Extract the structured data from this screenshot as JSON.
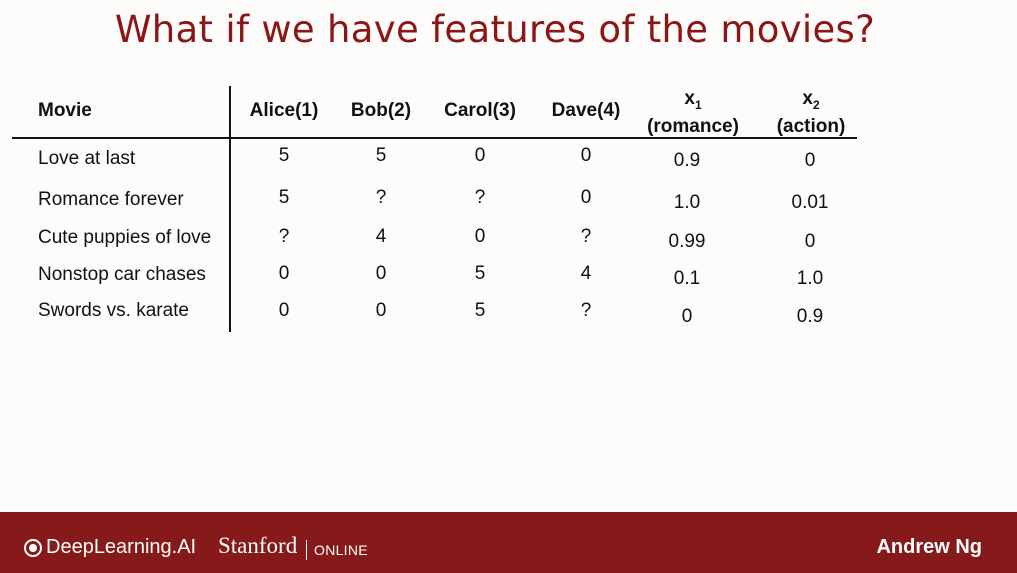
{
  "title": "What if we have features of the movies?",
  "table": {
    "headers": {
      "movie": "Movie",
      "alice": "Alice(1)",
      "bob": "Bob(2)",
      "carol": "Carol(3)",
      "dave": "Dave(4)",
      "x1_var": "x",
      "x1_sub": "1",
      "x1_label": "(romance)",
      "x2_var": "x",
      "x2_sub": "2",
      "x2_label": "(action)"
    },
    "rows": [
      {
        "movie": "Love at last",
        "alice": "5",
        "bob": "5",
        "carol": "0",
        "dave": "0",
        "x1": "0.9",
        "x2": "0"
      },
      {
        "movie": "Romance forever",
        "alice": "5",
        "bob": "?",
        "carol": "?",
        "dave": "0",
        "x1": "1.0",
        "x2": "0.01"
      },
      {
        "movie": "Cute puppies of love",
        "alice": "?",
        "bob": "4",
        "carol": "0",
        "dave": "?",
        "x1": "0.99",
        "x2": "0"
      },
      {
        "movie": "Nonstop car chases",
        "alice": "0",
        "bob": "0",
        "carol": "5",
        "dave": "4",
        "x1": "0.1",
        "x2": "1.0"
      },
      {
        "movie": "Swords vs. karate",
        "alice": "0",
        "bob": "0",
        "carol": "5",
        "dave": "?",
        "x1": "0",
        "x2": "0.9"
      }
    ]
  },
  "footer": {
    "brand": "DeepLearning.AI",
    "university": "Stanford",
    "online": "ONLINE",
    "author": "Andrew Ng"
  },
  "colors": {
    "title": "#8c1515",
    "footer_bg": "#861a1a"
  }
}
